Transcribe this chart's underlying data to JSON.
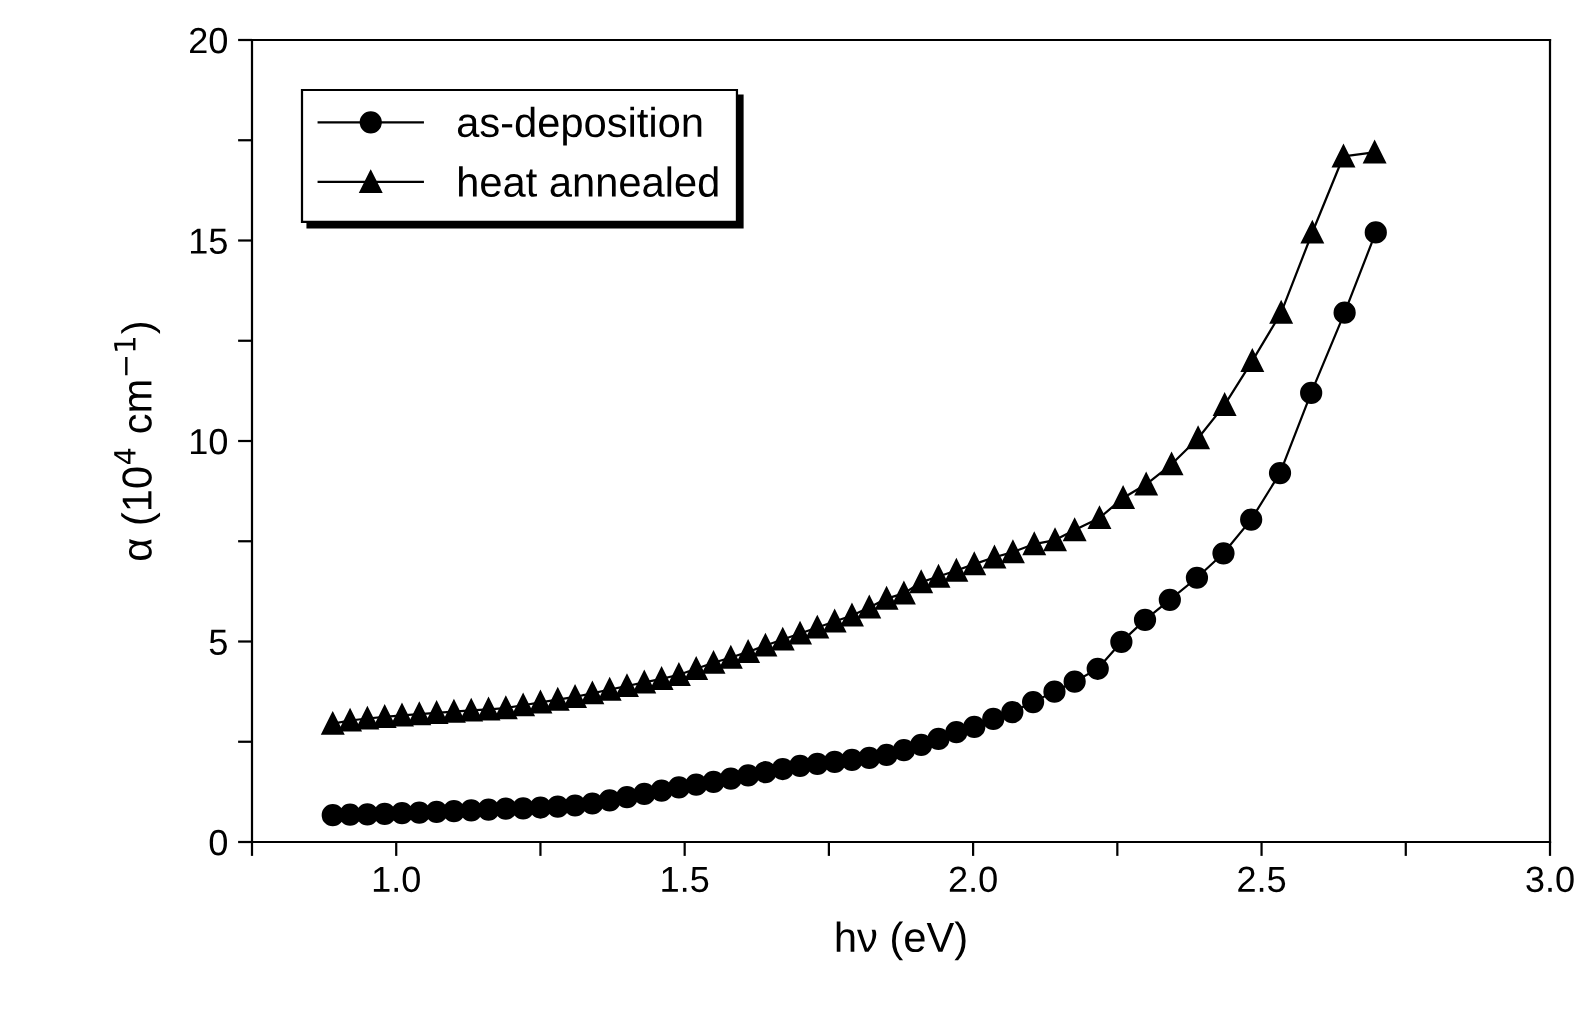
{
  "chart_data": {
    "type": "line",
    "xlabel": "hν (eV)",
    "ylabel": "α (10$^{4}$ cm$^{−1}$)",
    "xlim": [
      0.75,
      3.0
    ],
    "ylim": [
      0,
      20
    ],
    "xticks": [
      {
        "value": 0.75,
        "label": null
      },
      {
        "value": 1.0,
        "label": "1.0"
      },
      {
        "value": 1.25,
        "label": null
      },
      {
        "value": 1.5,
        "label": "1.5"
      },
      {
        "value": 1.75,
        "label": null
      },
      {
        "value": 2.0,
        "label": "2.0"
      },
      {
        "value": 2.25,
        "label": null
      },
      {
        "value": 2.5,
        "label": "2.5"
      },
      {
        "value": 2.75,
        "label": null
      },
      {
        "value": 3.0,
        "label": "3.0"
      }
    ],
    "yticks": [
      0,
      {
        "value": 2.5,
        "label": null
      },
      5,
      {
        "value": 7.5,
        "label": null
      },
      10,
      {
        "value": 12.5,
        "label": null
      },
      15,
      {
        "value": 17.5,
        "label": null
      },
      20
    ],
    "legend": "top left",
    "grid": false,
    "series": [
      {
        "name": "as-deposition",
        "color": "#000000",
        "marker": "circle",
        "x": [
          0.89,
          0.92,
          0.95,
          0.98,
          1.01,
          1.04,
          1.07,
          1.1,
          1.13,
          1.16,
          1.19,
          1.22,
          1.25,
          1.28,
          1.31,
          1.34,
          1.37,
          1.4,
          1.43,
          1.46,
          1.49,
          1.52,
          1.55,
          1.58,
          1.61,
          1.64,
          1.67,
          1.7,
          1.73,
          1.76,
          1.79,
          1.82,
          1.85,
          1.88,
          1.91,
          1.94,
          1.971,
          2.002,
          2.035,
          2.068,
          2.104,
          2.141,
          2.176,
          2.216,
          2.257,
          2.298,
          2.341,
          2.388,
          2.434,
          2.482,
          2.532,
          2.586,
          2.644,
          2.698
        ],
        "values": [
          0.67,
          0.68,
          0.69,
          0.7,
          0.72,
          0.73,
          0.75,
          0.77,
          0.79,
          0.81,
          0.83,
          0.84,
          0.86,
          0.88,
          0.91,
          0.96,
          1.04,
          1.12,
          1.2,
          1.28,
          1.36,
          1.43,
          1.5,
          1.58,
          1.66,
          1.74,
          1.82,
          1.9,
          1.95,
          2.0,
          2.05,
          2.1,
          2.17,
          2.29,
          2.42,
          2.57,
          2.74,
          2.87,
          3.07,
          3.24,
          3.49,
          3.75,
          4.0,
          4.32,
          4.99,
          5.54,
          6.04,
          6.59,
          7.2,
          8.04,
          9.2,
          11.2,
          13.2,
          15.2
        ]
      },
      {
        "name": "heat annealed",
        "color": "#000000",
        "marker": "triangle",
        "x": [
          0.89,
          0.92,
          0.95,
          0.98,
          1.01,
          1.04,
          1.07,
          1.1,
          1.13,
          1.16,
          1.19,
          1.22,
          1.25,
          1.28,
          1.31,
          1.34,
          1.37,
          1.4,
          1.43,
          1.46,
          1.49,
          1.52,
          1.55,
          1.58,
          1.61,
          1.64,
          1.67,
          1.7,
          1.73,
          1.76,
          1.79,
          1.82,
          1.85,
          1.88,
          1.91,
          1.94,
          1.971,
          2.002,
          2.037,
          2.069,
          2.106,
          2.142,
          2.176,
          2.219,
          2.26,
          2.3,
          2.344,
          2.39,
          2.436,
          2.484,
          2.534,
          2.588,
          2.642,
          2.696
        ],
        "values": [
          2.95,
          3.03,
          3.08,
          3.12,
          3.16,
          3.19,
          3.22,
          3.25,
          3.28,
          3.31,
          3.34,
          3.41,
          3.48,
          3.55,
          3.62,
          3.71,
          3.8,
          3.89,
          3.98,
          4.07,
          4.17,
          4.32,
          4.47,
          4.6,
          4.74,
          4.9,
          5.05,
          5.2,
          5.35,
          5.5,
          5.65,
          5.85,
          6.07,
          6.2,
          6.48,
          6.62,
          6.77,
          6.93,
          7.1,
          7.23,
          7.43,
          7.53,
          7.78,
          8.08,
          8.58,
          8.92,
          9.42,
          10.07,
          10.9,
          12.0,
          13.2,
          15.2,
          17.1,
          17.2
        ]
      }
    ]
  }
}
